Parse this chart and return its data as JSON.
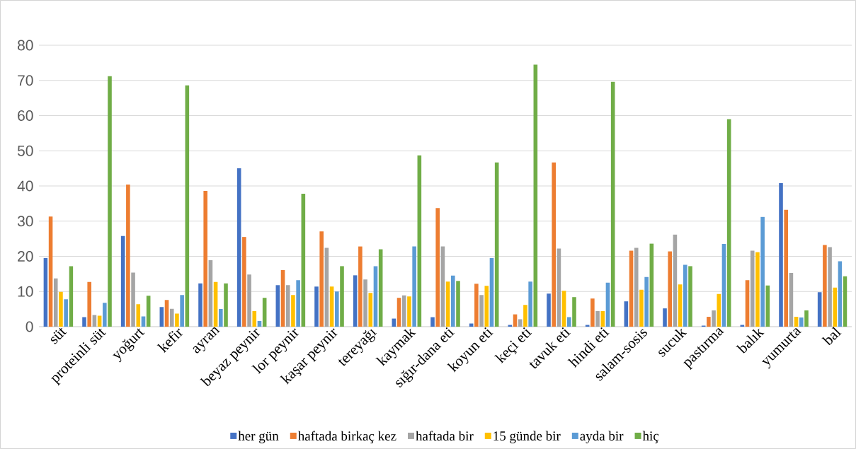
{
  "chart_data": {
    "type": "bar",
    "categories": [
      "süt",
      "proteinli süt",
      "yoğurt",
      "kefir",
      "ayran",
      "beyaz peynir",
      "lor peynir",
      "kaşar peynir",
      "tereyağı",
      "kaymak",
      "sığır-dana eti",
      "koyun eti",
      "keçi eti",
      "tavuk eti",
      "hindi eti",
      "salam-sosis",
      "sucuk",
      "pastırma",
      "balık",
      "yumurta",
      "bal"
    ],
    "series": [
      {
        "name": "her gün",
        "color": "#4472c4",
        "values": [
          19.5,
          2.7,
          25.8,
          5.6,
          12.3,
          45.0,
          11.8,
          11.4,
          14.6,
          2.3,
          2.7,
          0.9,
          0.5,
          9.4,
          0.5,
          7.2,
          5.2,
          0.3,
          0.5,
          40.8,
          9.8
        ]
      },
      {
        "name": "haftada birkaç kez",
        "color": "#ed7d31",
        "values": [
          31.3,
          12.7,
          40.4,
          7.6,
          38.6,
          25.5,
          16.1,
          27.1,
          22.8,
          8.2,
          33.7,
          12.2,
          3.5,
          46.7,
          8.0,
          21.6,
          21.4,
          2.8,
          13.2,
          33.2,
          23.2
        ]
      },
      {
        "name": "haftada bir",
        "color": "#a5a5a5",
        "values": [
          13.7,
          3.3,
          15.4,
          5.1,
          18.9,
          14.8,
          11.8,
          22.4,
          13.4,
          8.9,
          22.8,
          9.0,
          2.1,
          22.2,
          4.4,
          22.4,
          26.2,
          4.6,
          21.6,
          15.3,
          22.6
        ]
      },
      {
        "name": "15 günde bir",
        "color": "#ffc000",
        "values": [
          9.9,
          3.1,
          6.4,
          3.7,
          12.7,
          4.4,
          9.0,
          11.4,
          9.6,
          8.6,
          12.8,
          11.6,
          6.2,
          10.2,
          4.4,
          10.5,
          12.0,
          9.3,
          21.2,
          2.8,
          11.1
        ]
      },
      {
        "name": "ayda bir",
        "color": "#5b9bd5",
        "values": [
          7.8,
          6.8,
          2.9,
          9.0,
          5.0,
          1.6,
          13.2,
          10.0,
          17.2,
          22.8,
          14.5,
          19.5,
          12.8,
          2.7,
          12.5,
          14.1,
          17.6,
          23.5,
          31.2,
          2.6,
          18.6
        ]
      },
      {
        "name": "hiç",
        "color": "#70ad47",
        "values": [
          17.2,
          71.2,
          8.8,
          68.6,
          12.3,
          8.2,
          37.8,
          17.2,
          22.0,
          48.7,
          13.0,
          46.7,
          74.5,
          8.4,
          69.6,
          23.6,
          17.2,
          59.0,
          11.7,
          4.6,
          14.3
        ]
      }
    ],
    "ylim": [
      0,
      80
    ],
    "yticks": [
      0,
      10,
      20,
      30,
      40,
      50,
      60,
      70,
      80
    ],
    "grid": true,
    "legend": "bottom"
  }
}
